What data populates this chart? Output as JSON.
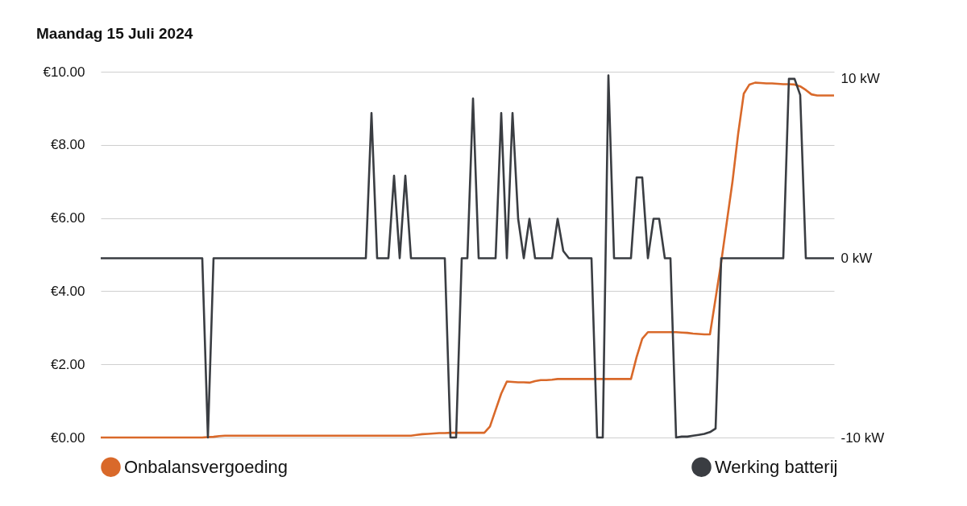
{
  "chart_data": {
    "type": "line",
    "title": "Maandag 15 Juli 2024",
    "categories": [
      null,
      null,
      null,
      null,
      null,
      null,
      null,
      null,
      null,
      null,
      null,
      null,
      null,
      null,
      null,
      null,
      null,
      null,
      null,
      null,
      null,
      null,
      null,
      null,
      null,
      null,
      null,
      null,
      null,
      null,
      null,
      null,
      null,
      null,
      null,
      null,
      null,
      null,
      null,
      null,
      null,
      null,
      null,
      null,
      null,
      null,
      null,
      null,
      null,
      null,
      null,
      null,
      null,
      null,
      null,
      null,
      null,
      null,
      null,
      null,
      null,
      null,
      null,
      null,
      null,
      null,
      null,
      null,
      null,
      null,
      null,
      null,
      null,
      null,
      null,
      null,
      null,
      null,
      null,
      null,
      null,
      null,
      null,
      null,
      null,
      null,
      null,
      null,
      null,
      null,
      null,
      null,
      null,
      null,
      null,
      null,
      null,
      null,
      null,
      null,
      null,
      null,
      null,
      null,
      null,
      null,
      null,
      null,
      null,
      null,
      null,
      null,
      null,
      null,
      null,
      null,
      null,
      null,
      null,
      null,
      null,
      null,
      null,
      null,
      null,
      null,
      null,
      null,
      null,
      null,
      null
    ],
    "series": [
      {
        "name": "Onbalansvergoeding",
        "color": "#d9692a",
        "values": [
          0,
          0,
          0,
          0,
          0,
          0,
          0,
          0,
          0,
          0,
          0,
          0,
          0,
          0,
          0,
          0,
          0,
          0,
          0,
          0.01,
          0.02,
          0.04,
          0.05,
          0.05,
          0.05,
          0.05,
          0.05,
          0.05,
          0.05,
          0.05,
          0.05,
          0.05,
          0.05,
          0.05,
          0.05,
          0.05,
          0.05,
          0.05,
          0.05,
          0.05,
          0.05,
          0.05,
          0.05,
          0.05,
          0.05,
          0.05,
          0.05,
          0.05,
          0.05,
          0.05,
          0.05,
          0.05,
          0.05,
          0.05,
          0.05,
          0.05,
          0.07,
          0.09,
          0.1,
          0.11,
          0.12,
          0.12,
          0.13,
          0.13,
          0.13,
          0.13,
          0.13,
          0.13,
          0.13,
          0.3,
          0.75,
          1.2,
          1.53,
          1.52,
          1.51,
          1.51,
          1.5,
          1.54,
          1.57,
          1.57,
          1.58,
          1.6,
          1.6,
          1.6,
          1.6,
          1.6,
          1.6,
          1.6,
          1.6,
          1.6,
          1.6,
          1.6,
          1.6,
          1.6,
          1.6,
          2.2,
          2.7,
          2.88,
          2.88,
          2.88,
          2.88,
          2.88,
          2.88,
          2.87,
          2.86,
          2.84,
          2.83,
          2.82,
          2.82,
          3.8,
          4.8,
          5.9,
          7.0,
          8.3,
          9.4,
          9.65,
          9.7,
          9.69,
          9.68,
          9.68,
          9.67,
          9.66,
          9.66,
          9.65,
          9.6,
          9.5,
          9.38,
          9.35,
          9.35,
          9.35,
          9.35
        ]
      },
      {
        "name": "Werking batterij",
        "color": "#3a3d42",
        "axis": "y2",
        "values": [
          0,
          0,
          0,
          0,
          0,
          0,
          0,
          0,
          0,
          0,
          0,
          0,
          0,
          0,
          0,
          0,
          0,
          0,
          0,
          -10,
          0,
          0,
          0,
          0,
          0,
          0,
          0,
          0,
          0,
          0,
          0,
          0,
          0,
          0,
          0,
          0,
          0,
          0,
          0,
          0,
          0,
          0,
          0,
          0,
          0,
          0,
          0,
          0,
          8.1,
          0,
          0,
          0,
          4.6,
          0,
          4.6,
          0,
          0,
          0,
          0,
          0,
          0,
          0,
          -10,
          -10,
          0,
          0,
          8.9,
          0,
          0,
          0,
          0,
          8.1,
          0,
          8.1,
          2.2,
          0,
          2.2,
          0,
          0,
          0,
          0,
          2.2,
          0.4,
          0,
          0,
          0,
          0,
          0,
          -10,
          -10,
          10.2,
          0,
          0,
          0,
          0,
          4.5,
          4.5,
          0,
          2.2,
          2.2,
          0,
          0,
          -10,
          -9.95,
          -9.95,
          -9.9,
          -9.85,
          -9.8,
          -9.7,
          -9.5,
          0,
          0,
          0,
          0,
          0,
          0,
          0,
          0,
          0,
          0,
          0,
          0,
          10,
          10,
          9.1,
          0,
          0,
          0,
          0,
          0,
          0
        ]
      }
    ],
    "ylim": [
      0,
      10
    ],
    "yticks": [
      {
        "value": 0,
        "label": "€0.00"
      },
      {
        "value": 2,
        "label": "€2.00"
      },
      {
        "value": 4,
        "label": "€4.00"
      },
      {
        "value": 6,
        "label": "€6.00"
      },
      {
        "value": 8,
        "label": "€8.00"
      },
      {
        "value": 10,
        "label": "€10.00"
      }
    ],
    "y2lim": [
      -10,
      10.4
    ],
    "y2ticks": [
      {
        "value": -10,
        "label": "-10 kW"
      },
      {
        "value": 0,
        "label": "0 kW"
      },
      {
        "value": 10,
        "label": "10 kW"
      }
    ],
    "grid": "y",
    "legend": "bottom"
  }
}
